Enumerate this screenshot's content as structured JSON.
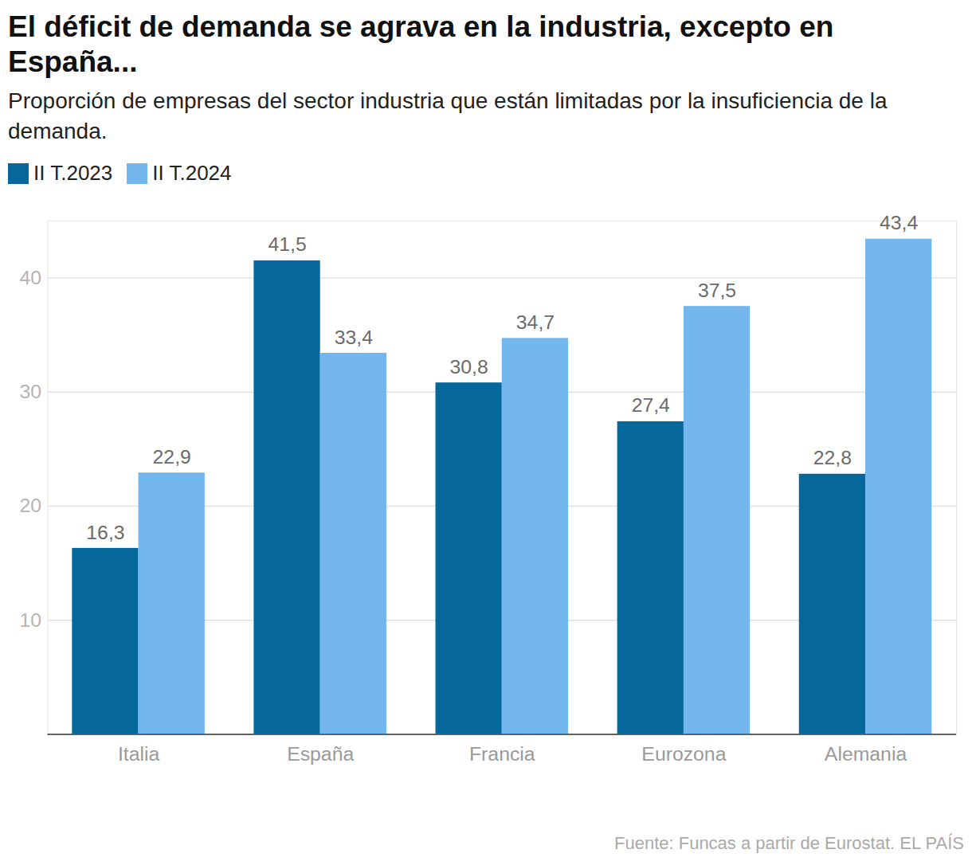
{
  "chart_data": {
    "type": "bar",
    "title": "El déficit de demanda se agrava en la industria, excepto en España...",
    "subtitle": "Proporción de empresas del sector industria que están limitadas por la insuficiencia de la demanda.",
    "caption": "Fuente: Funcas a partir de Eurostat. EL PAÍS",
    "categories": [
      "Italia",
      "España",
      "Francia",
      "Eurozona",
      "Alemania"
    ],
    "series": [
      {
        "name": "II T.2023",
        "color": "#05679a",
        "values": [
          16.3,
          41.5,
          30.8,
          27.4,
          22.8
        ],
        "value_labels": [
          "16,3",
          "41,5",
          "30,8",
          "27,4",
          "22,8"
        ]
      },
      {
        "name": "II T.2024",
        "color": "#74b7ef",
        "values": [
          22.9,
          33.4,
          34.7,
          37.5,
          43.4
        ],
        "value_labels": [
          "22,9",
          "33,4",
          "34,7",
          "37,5",
          "43,4"
        ]
      }
    ],
    "ylim": [
      0,
      45
    ],
    "yticks": [
      10,
      20,
      30,
      40
    ],
    "grid": true,
    "data_labels": true,
    "legend": "top-left"
  }
}
